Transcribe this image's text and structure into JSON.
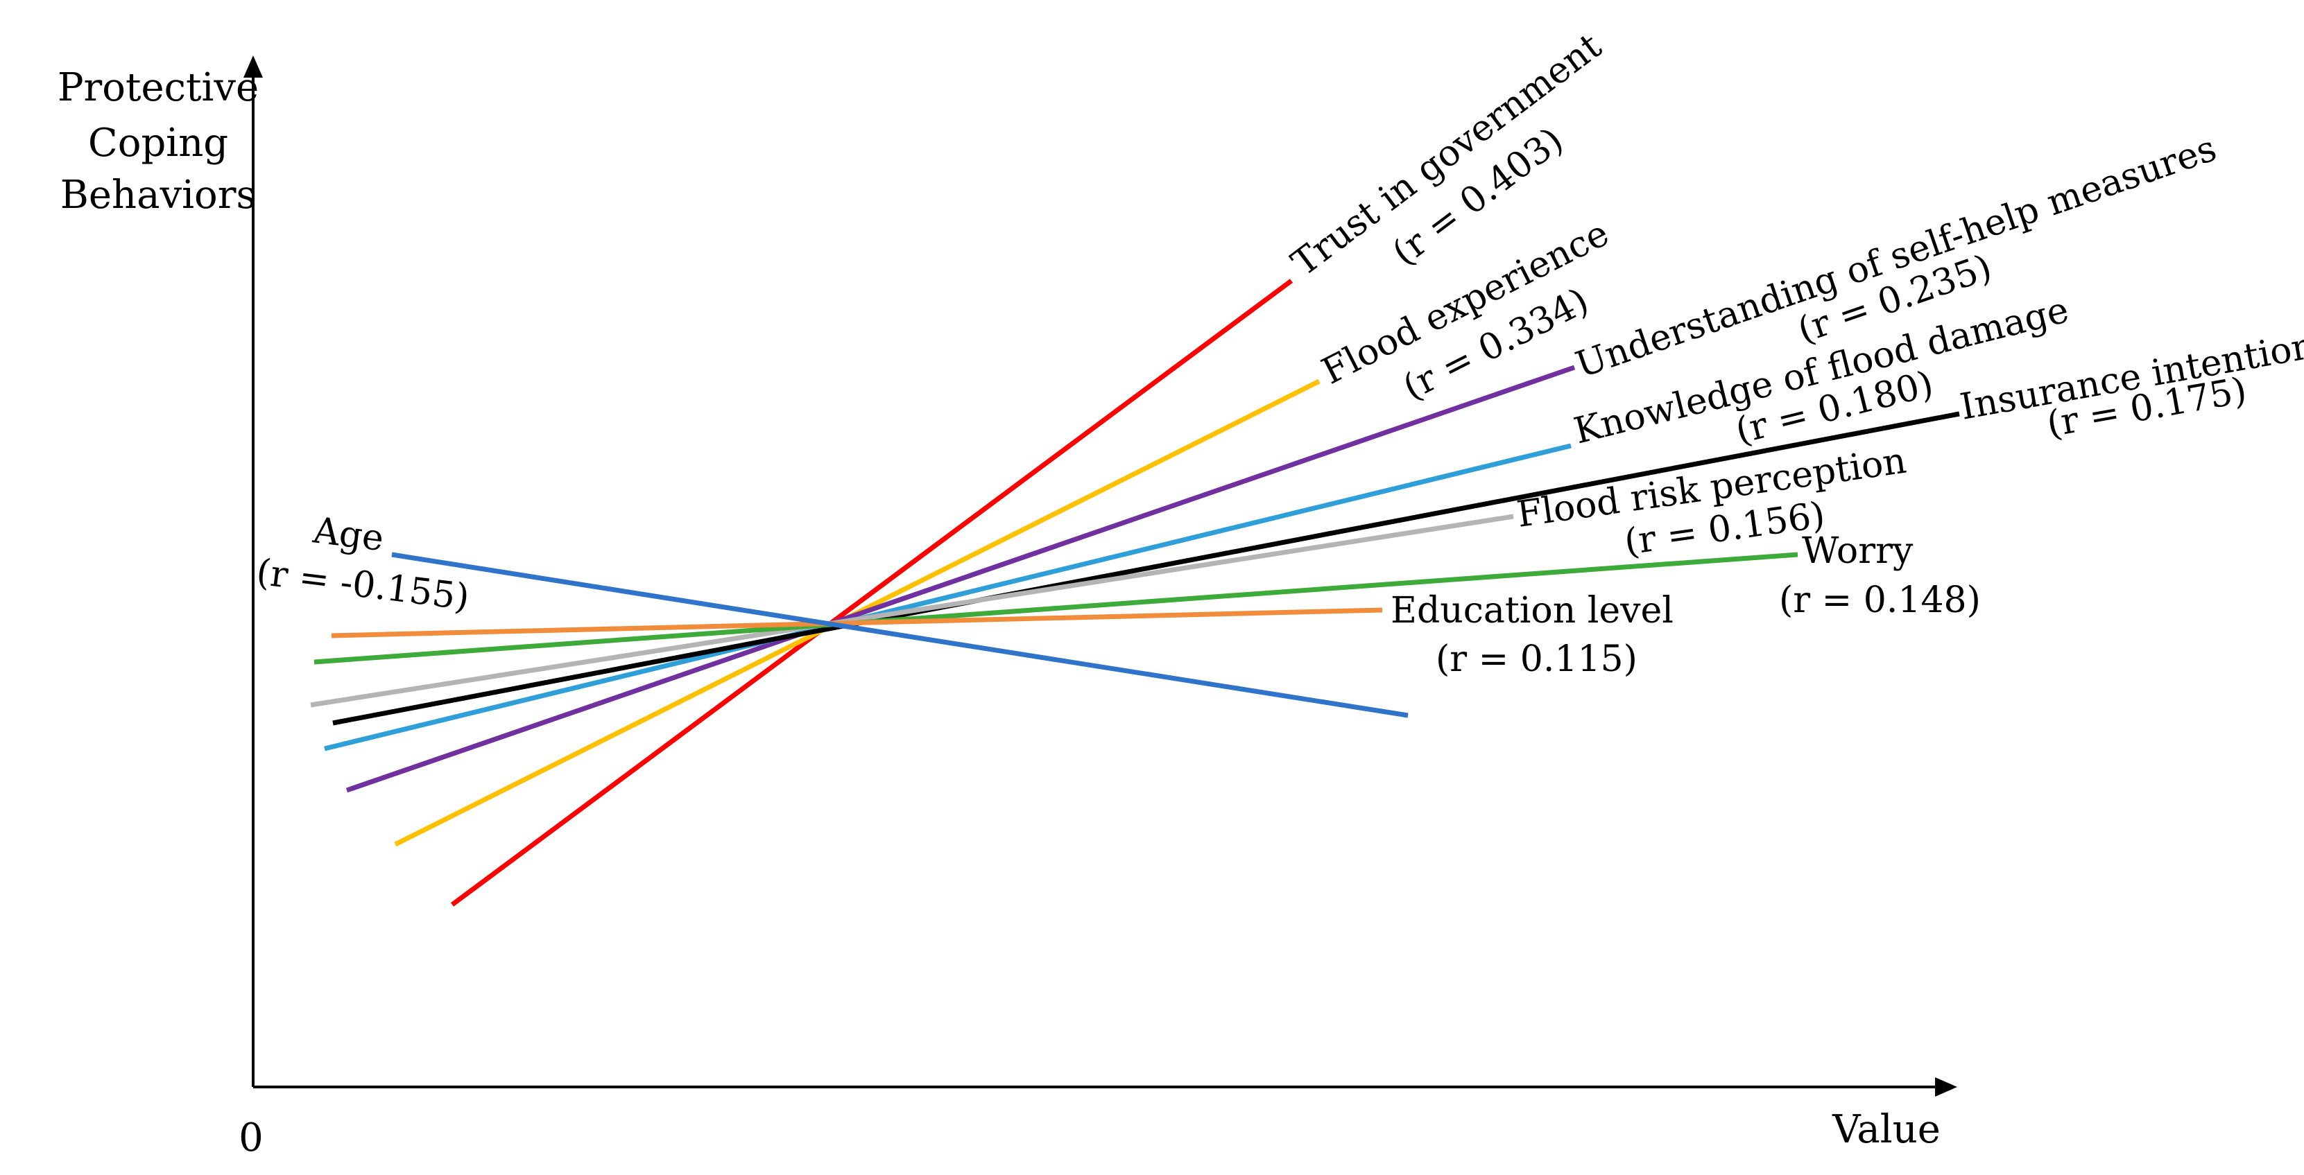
{
  "chart_data": {
    "type": "line",
    "title": "",
    "xlabel": "Value",
    "ylabel": [
      "Protective",
      "Coping",
      "Behaviors"
    ],
    "origin_label": "0",
    "grid": false,
    "legend": "none",
    "series": [
      {
        "name": "Trust in government",
        "r_label": "(r = 0.403)",
        "r": 0.403,
        "color": "#ff0000"
      },
      {
        "name": "Flood experience",
        "r_label": "(r = 0.334)",
        "r": 0.334,
        "color": "#ffc000"
      },
      {
        "name": "Understanding of self-help measures",
        "r_label": "(r = 0.235)",
        "r": 0.235,
        "color": "#7030a0"
      },
      {
        "name": "Knowledge of flood damage",
        "r_label": "(r = 0.180)",
        "r": 0.18,
        "color": "#2e9fd8"
      },
      {
        "name": "Insurance intention",
        "r_label": "(r = 0.175)",
        "r": 0.175,
        "color": "#000000"
      },
      {
        "name": "Flood risk perception",
        "r_label": "(r = 0.156)",
        "r": 0.156,
        "color": "#b4b4b4"
      },
      {
        "name": "Worry",
        "r_label": "(r = 0.148)",
        "r": 0.148,
        "color": "#3daa3a"
      },
      {
        "name": "Education level",
        "r_label": "(r = 0.115)",
        "r": 0.115,
        "color": "#f08c3c"
      },
      {
        "name": "Age",
        "r_label": "(r = -0.155)",
        "r": -0.155,
        "color": "#2f74c8"
      }
    ]
  }
}
